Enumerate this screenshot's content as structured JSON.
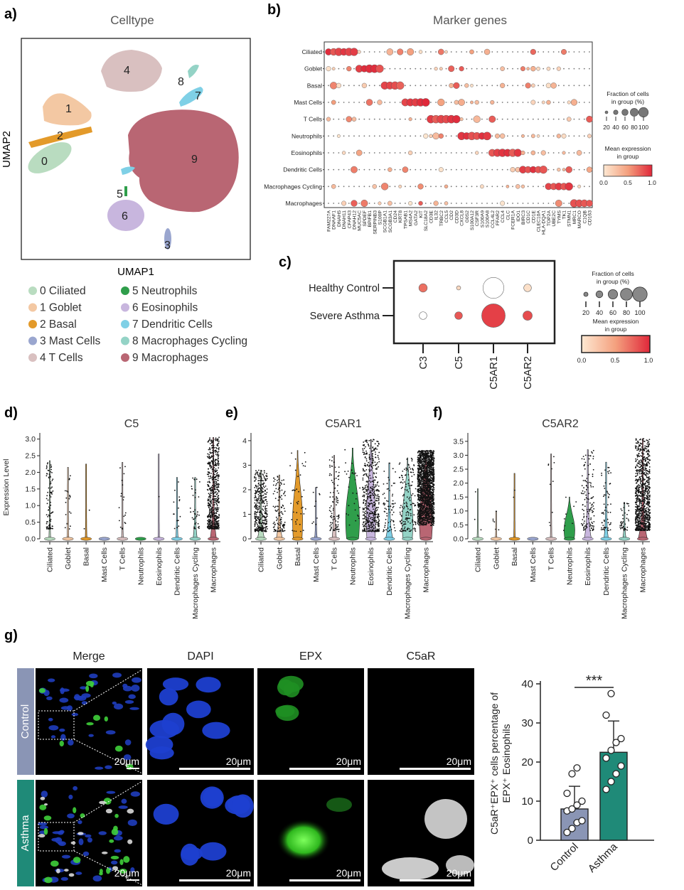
{
  "panels": {
    "a": {
      "letter": "a)",
      "title": "Celltype",
      "xlabel": "UMAP1",
      "ylabel": "UMAP2",
      "clusters": [
        {
          "id": "0",
          "label": "0 Ciliated",
          "color": "#b9dcc0"
        },
        {
          "id": "1",
          "label": "1 Goblet",
          "color": "#f3c8a3"
        },
        {
          "id": "2",
          "label": "2 Basal",
          "color": "#e39a2a"
        },
        {
          "id": "3",
          "label": "3 Mast Cells",
          "color": "#9aa6cf"
        },
        {
          "id": "4",
          "label": "4 T Cells",
          "color": "#d9c0c0"
        },
        {
          "id": "5",
          "label": "5 Neutrophils",
          "color": "#2f9e4b"
        },
        {
          "id": "6",
          "label": "6 Eosinophils",
          "color": "#c8b6de"
        },
        {
          "id": "7",
          "label": "7 Dendritic Cells",
          "color": "#7fd0e6"
        },
        {
          "id": "8",
          "label": "8 Macrophages Cycling",
          "color": "#94d3c6"
        },
        {
          "id": "9",
          "label": "9 Macrophages",
          "color": "#b96673"
        }
      ]
    },
    "b": {
      "letter": "b)",
      "title": "Marker genes",
      "size_legend_title": "Fraction of cells in group (%)",
      "size_ticks": [
        "20",
        "40",
        "60",
        "80",
        "100"
      ],
      "color_legend_title": "Mean expression in group",
      "color_ticks": [
        "0.0",
        "0.5",
        "1.0"
      ]
    },
    "c": {
      "letter": "c)",
      "size_legend_title": "Fraction of cells in group (%)",
      "size_ticks": [
        "20",
        "40",
        "60",
        "80",
        "100"
      ],
      "color_legend_title": "Mean expression in group",
      "color_ticks": [
        "0.0",
        "0.5",
        "1.0"
      ]
    },
    "d": {
      "letter": "d)"
    },
    "e": {
      "letter": "e)"
    },
    "f": {
      "letter": "f)"
    },
    "g": {
      "letter": "g)",
      "columns": [
        "Merge",
        "DAPI",
        "EPX",
        "C5aR"
      ],
      "rows": [
        "Control",
        "Asthma"
      ],
      "scale": "20μm",
      "row_colors": {
        "Control": "#8a95b5",
        "Asthma": "#1f8a78"
      }
    }
  },
  "chart_data": [
    {
      "type": "scatter",
      "panel": "a",
      "title": "Celltype",
      "xlabel": "UMAP1",
      "ylabel": "UMAP2",
      "cluster_centers": [
        {
          "cluster": "0",
          "x": 0.08,
          "y": 0.58
        },
        {
          "cluster": "1",
          "x": 0.2,
          "y": 0.77
        },
        {
          "cluster": "2",
          "x": 0.15,
          "y": 0.66
        },
        {
          "cluster": "3",
          "x": 0.63,
          "y": 0.09
        },
        {
          "cluster": "4",
          "x": 0.45,
          "y": 0.92
        },
        {
          "cluster": "5",
          "x": 0.45,
          "y": 0.32
        },
        {
          "cluster": "6",
          "x": 0.45,
          "y": 0.22
        },
        {
          "cluster": "7",
          "x": 0.75,
          "y": 0.8
        },
        {
          "cluster": "8",
          "x": 0.73,
          "y": 0.88
        },
        {
          "cluster": "9",
          "x": 0.73,
          "y": 0.54
        }
      ]
    },
    {
      "type": "dotplot",
      "panel": "b",
      "title": "Marker genes",
      "rows": [
        "Ciliated",
        "Goblet",
        "Basal",
        "Mast Cells",
        "T Cells",
        "Neutrophils",
        "Eosinophils",
        "Dendritic Cells",
        "Macrophages Cycling",
        "Macrophages"
      ],
      "genes": [
        "FAM227A",
        "DNAAF1",
        "DNAH5",
        "DNAH11",
        "CFAP43",
        "DNAH12",
        "MUC5AC",
        "SPDEF",
        "BPIFB1",
        "SERPINB3",
        "S100P",
        "SCGB1A1",
        "SCGB3A1",
        "CD24",
        "KRT8",
        "TPSAB1",
        "MS4A2",
        "GATA2",
        "KIT",
        "SLC18A2",
        "CD3E",
        "IL32",
        "TRBC2",
        "CCL5",
        "CD2",
        "CD3D",
        "CXCL8",
        "G0S2",
        "S100A12",
        "CSF3R",
        "S100A9",
        "S100A8",
        "CCL4L2",
        "FFAR2",
        "CCL4",
        "CLC",
        "FCER1A",
        "IDO1",
        "BIRC3",
        "CD1C",
        "CD1E",
        "CLEC10A",
        "HLA-DQA1",
        "TOP2A",
        "UBE2C",
        "TYMS",
        "TK1",
        "STMN1",
        "MRC1",
        "MARCO",
        "C1QB",
        "CD163"
      ],
      "blocks": [
        {
          "row": "Ciliated",
          "from": 0,
          "to": 5
        },
        {
          "row": "Goblet",
          "from": 6,
          "to": 10
        },
        {
          "row": "Basal",
          "from": 11,
          "to": 14
        },
        {
          "row": "Mast Cells",
          "from": 15,
          "to": 19
        },
        {
          "row": "T Cells",
          "from": 20,
          "to": 25
        },
        {
          "row": "Neutrophils",
          "from": 26,
          "to": 31
        },
        {
          "row": "Eosinophils",
          "from": 32,
          "to": 37
        },
        {
          "row": "Dendritic Cells",
          "from": 38,
          "to": 42
        },
        {
          "row": "Macrophages Cycling",
          "from": 43,
          "to": 47
        },
        {
          "row": "Macrophages",
          "from": 48,
          "to": 51
        }
      ]
    },
    {
      "type": "dotplot",
      "panel": "c",
      "rows": [
        "Healthy Control",
        "Severe Asthma"
      ],
      "genes": [
        "C3",
        "C5",
        "C5AR1",
        "C5AR2"
      ],
      "fraction": [
        [
          12,
          3,
          75,
          10
        ],
        [
          10,
          10,
          95,
          15
        ]
      ],
      "expression": [
        [
          0.7,
          0.1,
          0.0,
          0.05
        ],
        [
          0.0,
          0.8,
          0.9,
          0.85
        ]
      ]
    },
    {
      "type": "violin",
      "panel": "d",
      "title": "C5",
      "ylabel": "Expression Level",
      "yticks": [
        "0.0",
        "0.5",
        "1.0",
        "1.5",
        "2.0",
        "2.5",
        "3.0"
      ],
      "ylim": [
        0,
        3.1
      ],
      "categories": [
        "Ciliated",
        "Goblet",
        "Basal",
        "Mast Cells",
        "T Cells",
        "Neutrophils",
        "Eosinophils",
        "Dendritic Cells",
        "Macrophages Cycling",
        "Macrophages"
      ],
      "max": [
        2.35,
        2.15,
        2.25,
        0,
        2.3,
        0,
        2.55,
        1.85,
        1.85,
        3.05
      ],
      "points": [
        90,
        20,
        2,
        0,
        20,
        0,
        1,
        15,
        40,
        600
      ],
      "violin_max_width": [
        0.05,
        0.05,
        0.05,
        0,
        0.05,
        0,
        0.03,
        0.08,
        0.2,
        0.3
      ]
    },
    {
      "type": "violin",
      "panel": "e",
      "title": "C5AR1",
      "yticks": [
        "0",
        "1",
        "2",
        "3",
        "4"
      ],
      "ylim": [
        0,
        4.2
      ],
      "categories": [
        "Ciliated",
        "Goblet",
        "Basal",
        "Mast Cells",
        "T Cells",
        "Neutrophils",
        "Eosinophils",
        "Dendritic Cells",
        "Macrophages Cycling",
        "Macrophages"
      ],
      "max": [
        2.8,
        2.6,
        3.6,
        2.1,
        3.4,
        3.7,
        4.05,
        3.1,
        3.3,
        3.6
      ],
      "points": [
        380,
        120,
        40,
        10,
        90,
        30,
        500,
        70,
        160,
        1800
      ],
      "violin_max_width": [
        0.35,
        0.3,
        0.65,
        0.1,
        0.2,
        0.9,
        0.6,
        0.35,
        0.7,
        0.85
      ]
    },
    {
      "type": "violin",
      "panel": "f",
      "title": "C5AR2",
      "yticks": [
        "0.0",
        "0.5",
        "1.0",
        "1.5",
        "2.0",
        "2.5",
        "3.0",
        "3.5"
      ],
      "ylim": [
        0,
        3.7
      ],
      "categories": [
        "Ciliated",
        "Goblet",
        "Basal",
        "Mast Cells",
        "T Cells",
        "Neutrophils",
        "Eosinophils",
        "Dendritic Cells",
        "Macrophages Cycling",
        "Macrophages"
      ],
      "max": [
        1.8,
        1.0,
        2.35,
        0,
        3.05,
        1.5,
        3.2,
        2.75,
        1.3,
        3.6
      ],
      "points": [
        3,
        6,
        2,
        0,
        10,
        8,
        130,
        60,
        45,
        900
      ],
      "violin_max_width": [
        0.04,
        0.04,
        0.04,
        0,
        0.04,
        0.7,
        0.35,
        0.2,
        0.15,
        0.45
      ]
    },
    {
      "type": "bar",
      "panel": "g",
      "ylabel": "C5aR⁺EPX⁺ cells percentage of EPX⁺ Eosinophils",
      "yticks": [
        "0",
        "10",
        "20",
        "30",
        "40"
      ],
      "ylim": [
        0,
        40
      ],
      "categories": [
        "Control",
        "Asthma"
      ],
      "values": [
        8.0,
        22.5
      ],
      "errors": [
        5.8,
        8.0
      ],
      "significance": "***",
      "points": [
        [
          2.0,
          3.0,
          4.5,
          5.0,
          7.5,
          8.0,
          9.0,
          10.0,
          12.0,
          17.0,
          18.5
        ],
        [
          13.0,
          15.0,
          17.0,
          19.0,
          21.0,
          23.0,
          25.0,
          26.0,
          32.0,
          37.5
        ]
      ],
      "colors": [
        "#8a95b5",
        "#1f8a78"
      ]
    }
  ]
}
